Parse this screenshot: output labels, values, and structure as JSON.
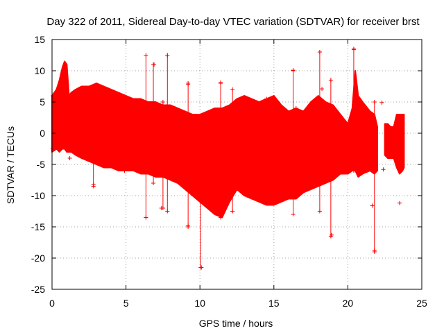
{
  "chart_data": {
    "type": "scatter",
    "title": "Day 322 of 2011, Sidereal Day-to-day VTEC variation (SDTVAR) for receiver brst",
    "xlabel": "GPS time / hours",
    "ylabel": "SDTVAR / TECUs",
    "xlim": [
      0,
      25
    ],
    "ylim": [
      -25,
      15
    ],
    "x_ticks": [
      0,
      5,
      10,
      15,
      20,
      25
    ],
    "y_ticks": [
      -25,
      -20,
      -15,
      -10,
      -5,
      0,
      5,
      10,
      15
    ],
    "x_tick_labels": [
      "0",
      "5",
      "10",
      "15",
      "20",
      "25"
    ],
    "y_tick_labels": [
      "-25",
      "-20",
      "-15",
      "-10",
      "-5",
      "0",
      "5",
      "10",
      "15"
    ],
    "grid": true,
    "marker": "+",
    "color": "#ff0000",
    "envelope": {
      "description": "approximate upper/lower bounds of the dense point cloud",
      "x": [
        0.0,
        0.3,
        0.5,
        0.7,
        0.85,
        1.0,
        1.15,
        1.3,
        1.6,
        2.0,
        2.5,
        3.0,
        3.5,
        4.0,
        4.5,
        5.0,
        5.5,
        6.0,
        6.5,
        7.0,
        7.5,
        8.0,
        8.5,
        9.0,
        9.5,
        10.0,
        10.5,
        11.0,
        11.5,
        12.0,
        12.5,
        13.0,
        13.5,
        14.0,
        14.5,
        15.0,
        15.5,
        16.0,
        16.5,
        17.0,
        17.5,
        18.0,
        18.5,
        19.0,
        19.5,
        20.0,
        20.3,
        20.5,
        20.7,
        21.0,
        21.5,
        21.8,
        22.0
      ],
      "upper": [
        6.0,
        7.0,
        8.5,
        10.5,
        11.5,
        11.0,
        6.0,
        6.5,
        7.0,
        7.5,
        7.5,
        8.0,
        7.5,
        7.0,
        6.5,
        6.0,
        5.5,
        5.5,
        5.0,
        5.0,
        4.5,
        4.5,
        4.0,
        3.5,
        3.0,
        3.0,
        3.5,
        4.0,
        4.0,
        4.5,
        5.5,
        6.0,
        5.5,
        5.0,
        5.5,
        6.0,
        4.5,
        3.5,
        4.0,
        3.5,
        5.0,
        6.0,
        5.0,
        4.5,
        3.0,
        1.5,
        4.0,
        10.0,
        6.0,
        5.0,
        3.5,
        3.0,
        1.0
      ],
      "lower": [
        -3.0,
        -2.5,
        -3.0,
        -2.5,
        -2.5,
        -3.0,
        -3.0,
        -3.0,
        -3.5,
        -4.0,
        -4.5,
        -5.0,
        -5.5,
        -5.5,
        -6.0,
        -6.0,
        -6.0,
        -6.5,
        -6.5,
        -7.0,
        -7.0,
        -7.5,
        -8.0,
        -9.0,
        -10.0,
        -11.0,
        -12.0,
        -13.0,
        -13.5,
        -11.0,
        -9.0,
        -10.0,
        -10.5,
        -11.0,
        -11.5,
        -11.5,
        -11.0,
        -10.5,
        -10.5,
        -9.5,
        -9.0,
        -8.5,
        -8.0,
        -7.5,
        -6.5,
        -6.5,
        -6.0,
        -6.0,
        -7.0,
        -6.5,
        -6.0,
        -6.5,
        -6.0
      ]
    },
    "late_segment": {
      "x": [
        22.5,
        22.7,
        22.9,
        23.1,
        23.3,
        23.5,
        23.7,
        23.8
      ],
      "upper": [
        1.5,
        1.5,
        1.0,
        1.0,
        3.0,
        3.0,
        3.0,
        3.0
      ],
      "lower": [
        -3.5,
        -4.0,
        -4.0,
        -4.0,
        -5.5,
        -6.5,
        -6.0,
        -5.5
      ]
    },
    "spikes": [
      {
        "x": 0.05,
        "y_min": -2.5,
        "y_max": 6.0
      },
      {
        "x": 2.8,
        "y_min": -8.5,
        "y_max": -3.0
      },
      {
        "x": 4.9,
        "y_min": -6.0,
        "y_max": -2.0
      },
      {
        "x": 6.35,
        "y_min": -13.5,
        "y_max": 12.5
      },
      {
        "x": 6.85,
        "y_min": -8.0,
        "y_max": 11.0
      },
      {
        "x": 7.5,
        "y_min": -12.0,
        "y_max": 5.0
      },
      {
        "x": 7.8,
        "y_min": -12.5,
        "y_max": 12.5
      },
      {
        "x": 9.2,
        "y_min": -15.0,
        "y_max": 8.0
      },
      {
        "x": 10.05,
        "y_min": -21.5,
        "y_max": -9.0
      },
      {
        "x": 11.4,
        "y_min": -13.5,
        "y_max": 8.0
      },
      {
        "x": 12.2,
        "y_min": -12.5,
        "y_max": 7.0
      },
      {
        "x": 16.3,
        "y_min": -13.0,
        "y_max": 10.0
      },
      {
        "x": 18.1,
        "y_min": -12.5,
        "y_max": 13.0
      },
      {
        "x": 18.85,
        "y_min": -16.5,
        "y_max": 8.5
      },
      {
        "x": 20.4,
        "y_min": -6.0,
        "y_max": 13.5
      },
      {
        "x": 21.8,
        "y_min": -19.0,
        "y_max": 5.0
      }
    ],
    "isolated_points": [
      {
        "x": 1.2,
        "y": -4.0
      },
      {
        "x": 2.8,
        "y": -8.2
      },
      {
        "x": 4.9,
        "y": -5.8
      },
      {
        "x": 6.35,
        "y": -13.5
      },
      {
        "x": 6.9,
        "y": 11.0
      },
      {
        "x": 7.4,
        "y": -12.0
      },
      {
        "x": 7.8,
        "y": 12.5
      },
      {
        "x": 9.2,
        "y": 7.8
      },
      {
        "x": 9.2,
        "y": -14.8
      },
      {
        "x": 10.1,
        "y": -21.5
      },
      {
        "x": 11.4,
        "y": 8.1
      },
      {
        "x": 12.2,
        "y": -12.5
      },
      {
        "x": 14.5,
        "y": 5.5
      },
      {
        "x": 16.3,
        "y": 10.1
      },
      {
        "x": 16.5,
        "y": 4.0
      },
      {
        "x": 18.1,
        "y": 13.0
      },
      {
        "x": 18.25,
        "y": 7.1
      },
      {
        "x": 18.85,
        "y": 8.5
      },
      {
        "x": 18.9,
        "y": -16.3
      },
      {
        "x": 20.4,
        "y": 13.4
      },
      {
        "x": 21.65,
        "y": -11.6
      },
      {
        "x": 21.8,
        "y": -18.8
      },
      {
        "x": 22.3,
        "y": 4.9
      },
      {
        "x": 22.4,
        "y": -5.8
      },
      {
        "x": 23.5,
        "y": -11.2
      }
    ]
  }
}
